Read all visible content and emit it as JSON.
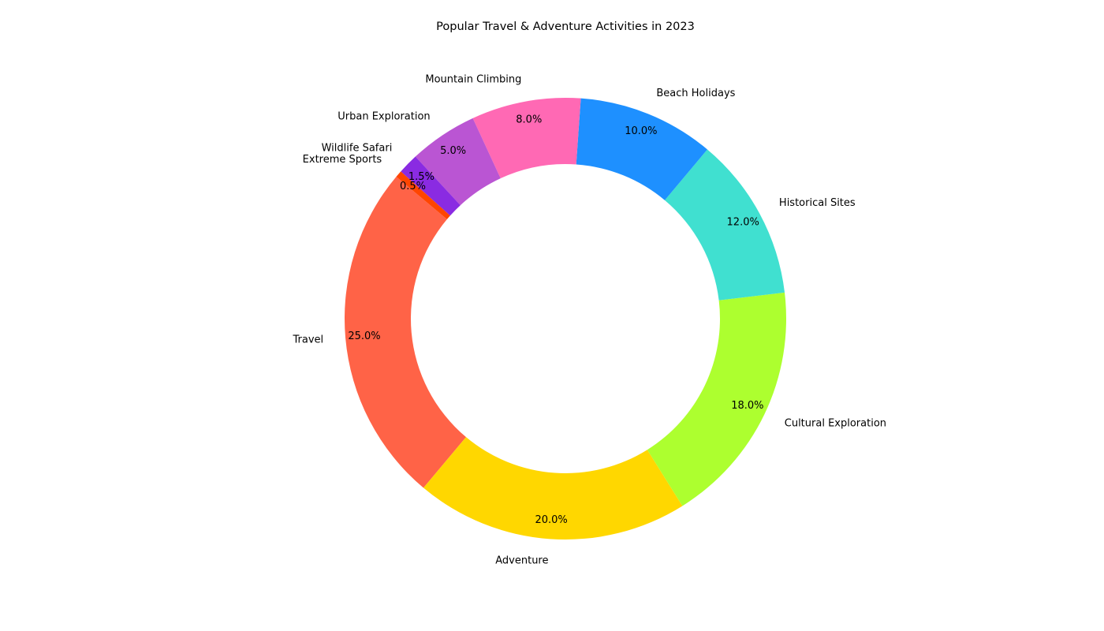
{
  "chart_data": {
    "type": "pie",
    "style": "donut",
    "title": "Popular Travel & Adventure Activities in 2023",
    "start_angle_deg": 140,
    "direction": "counterclockwise",
    "slices": [
      {
        "label": "Travel",
        "value": 25.0,
        "pct_label": "25.0%",
        "color": "#FF6347"
      },
      {
        "label": "Adventure",
        "value": 20.0,
        "pct_label": "20.0%",
        "color": "#FFD700"
      },
      {
        "label": "Cultural Exploration",
        "value": 18.0,
        "pct_label": "18.0%",
        "color": "#ADFF2F"
      },
      {
        "label": "Historical Sites",
        "value": 12.0,
        "pct_label": "12.0%",
        "color": "#40E0D0"
      },
      {
        "label": "Beach Holidays",
        "value": 10.0,
        "pct_label": "10.0%",
        "color": "#1E90FF"
      },
      {
        "label": "Mountain Climbing",
        "value": 8.0,
        "pct_label": "8.0%",
        "color": "#FF69B4"
      },
      {
        "label": "Urban Exploration",
        "value": 5.0,
        "pct_label": "5.0%",
        "color": "#BA55D3"
      },
      {
        "label": "Wildlife Safari",
        "value": 1.5,
        "pct_label": "1.5%",
        "color": "#8A2BE2"
      },
      {
        "label": "Extreme Sports",
        "value": 0.5,
        "pct_label": "0.5%",
        "color": "#FF4500"
      }
    ]
  }
}
